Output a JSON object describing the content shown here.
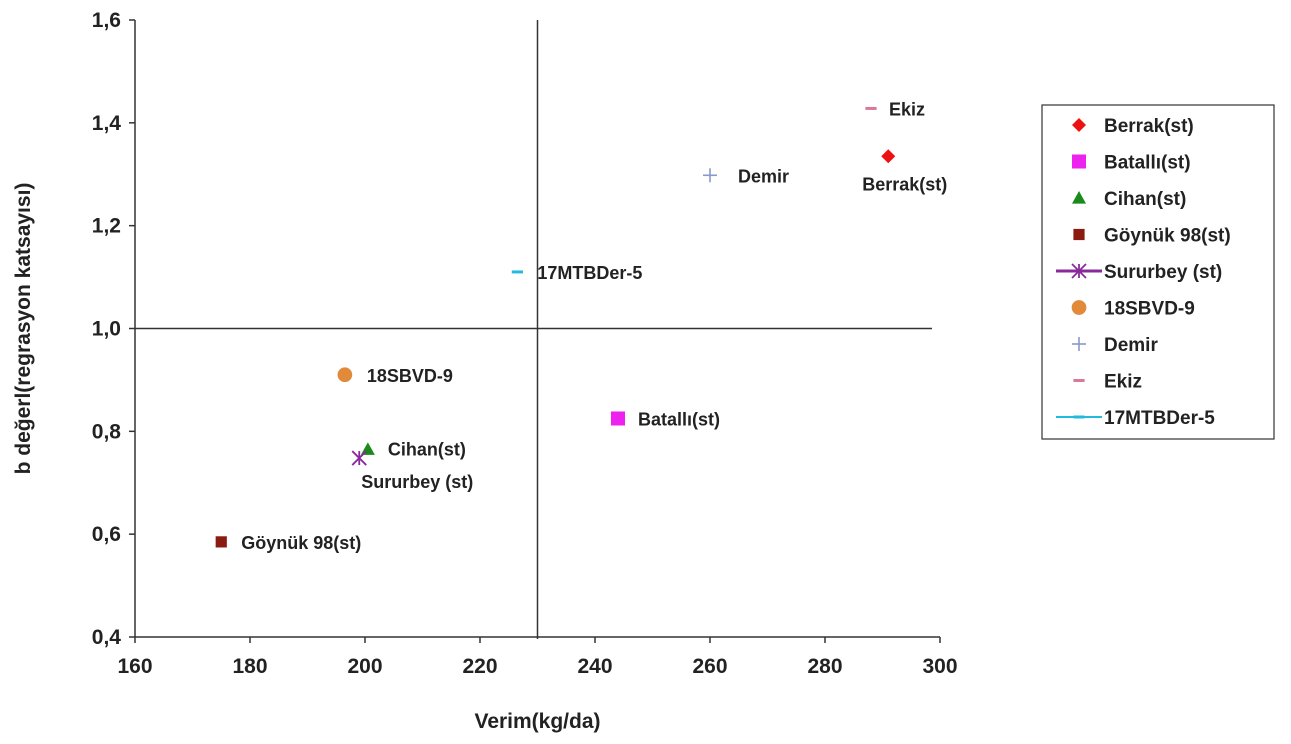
{
  "chart_data": {
    "type": "scatter",
    "xlabel": "Verim(kg/da)",
    "ylabel": "b değerl(regrasyon katsayısı)",
    "xlim": [
      160,
      300
    ],
    "ylim": [
      0.4,
      1.6
    ],
    "x_ticks": [
      "160",
      "180",
      "200",
      "220",
      "240",
      "260",
      "280",
      "300"
    ],
    "y_ticks": [
      "0,4",
      "0,6",
      "0,8",
      "1,0",
      "1,2",
      "1,4",
      "1,6"
    ],
    "grid": false,
    "reference_lines": {
      "x": 230,
      "y": 1.0
    },
    "legend_position": "right",
    "series": [
      {
        "name": "Berrak(st)",
        "label": "Berrak(st)",
        "x": 291,
        "y": 1.335,
        "marker": "diamond",
        "color": "#ee1111"
      },
      {
        "name": "Batallı(st)",
        "label": "Batallı(st)",
        "x": 244,
        "y": 0.825,
        "marker": "square",
        "color": "#ee22ee"
      },
      {
        "name": "Cihan(st)",
        "label": "Cihan(st)",
        "x": 200.5,
        "y": 0.765,
        "marker": "triangle",
        "color": "#1a8a1a"
      },
      {
        "name": "Göynük 98(st)",
        "label": "Göynük 98(st)",
        "x": 175,
        "y": 0.585,
        "marker": "square-small",
        "color": "#8b1a10"
      },
      {
        "name": "Sururbey  (st)",
        "label": "Sururbey (st)",
        "x": 199,
        "y": 0.748,
        "marker": "star",
        "color": "#8a2a9a"
      },
      {
        "name": "18SBVD-9",
        "label": "18SBVD-9",
        "x": 196.5,
        "y": 0.91,
        "marker": "circle",
        "color": "#e08a3a"
      },
      {
        "name": " Demir",
        "label": "Demir",
        "x": 260,
        "y": 1.298,
        "marker": "plus",
        "color": "#8899cc"
      },
      {
        "name": "Ekiz",
        "label": "Ekiz",
        "x": 288,
        "y": 1.428,
        "marker": "dash",
        "color": "#d87a9a"
      },
      {
        "name": "17MTBDer-5",
        "label": "17MTBDer-5",
        "x": 226.5,
        "y": 1.11,
        "marker": "dash",
        "color": "#22bbdd"
      }
    ]
  }
}
